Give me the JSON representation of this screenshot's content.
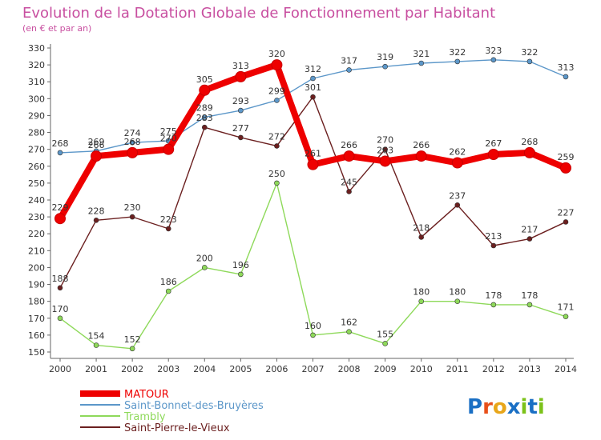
{
  "chart_data": {
    "type": "line",
    "title": "Evolution de la Dotation Globale de Fonctionnement par Habitant",
    "subtitle": "(en € et par an)",
    "x": [
      "2000",
      "2001",
      "2002",
      "2003",
      "2004",
      "2005",
      "2006",
      "2007",
      "2008",
      "2009",
      "2010",
      "2011",
      "2012",
      "2013",
      "2014"
    ],
    "ylim": [
      150,
      330
    ],
    "ystep": 10,
    "grid": false,
    "legend_position": "bottom-left",
    "series": [
      {
        "name": "Saint-Bonnet-des-Bruyères",
        "color": "#5c97c9",
        "values": [
          268,
          269,
          274,
          275,
          289,
          293,
          299,
          312,
          317,
          319,
          321,
          322,
          323,
          322,
          313
        ],
        "labels": [
          "268",
          "269",
          "274",
          "275",
          "289",
          "293",
          "299",
          "312",
          "317",
          "319",
          "321",
          "322",
          "323",
          "322",
          "313"
        ]
      },
      {
        "name": "Trambly",
        "color": "#8ed95a",
        "values": [
          170,
          154,
          152,
          186,
          200,
          196,
          250,
          160,
          162,
          155,
          180,
          180,
          178,
          178,
          171
        ],
        "labels": [
          "170",
          "154",
          "152",
          "186",
          "200",
          "196",
          "250",
          "160",
          "162",
          "155",
          "180",
          "180",
          "178",
          "178",
          "171"
        ]
      },
      {
        "name": "Saint-Pierre-le-Vieux",
        "color": "#6b1f1f",
        "values": [
          188,
          228,
          230,
          223,
          283,
          277,
          272,
          301,
          245,
          270,
          218,
          237,
          213,
          217,
          227
        ],
        "labels": [
          "188",
          "228",
          "230",
          "223",
          "283",
          "277",
          "272",
          "301",
          "245",
          "270",
          "218",
          "237",
          "213",
          "217",
          "227"
        ]
      },
      {
        "name": "MATOUR",
        "color": "#ee0000",
        "values": [
          229,
          266,
          268,
          270,
          305,
          313,
          320,
          261,
          266,
          263,
          266,
          262,
          267,
          268,
          259
        ],
        "labels": [
          "229",
          "266",
          "268",
          "270",
          "305",
          "313",
          "320",
          "261",
          "266",
          "263",
          "266",
          "262",
          "267",
          "268",
          "259"
        ]
      }
    ],
    "legend": [
      "MATOUR",
      "Saint-Bonnet-des-Bruyères",
      "Trambly",
      "Saint-Pierre-le-Vieux"
    ]
  },
  "branding": {
    "logo_text": "Proxiti",
    "letters": [
      "P",
      "r",
      "o",
      "x",
      "i",
      "t",
      "i"
    ],
    "letter_colors": [
      "#1a6fc4",
      "#e8501a",
      "#e8a61a",
      "#1a6fc4",
      "#7cc21a",
      "#1a6fc4",
      "#7cc21a"
    ]
  }
}
